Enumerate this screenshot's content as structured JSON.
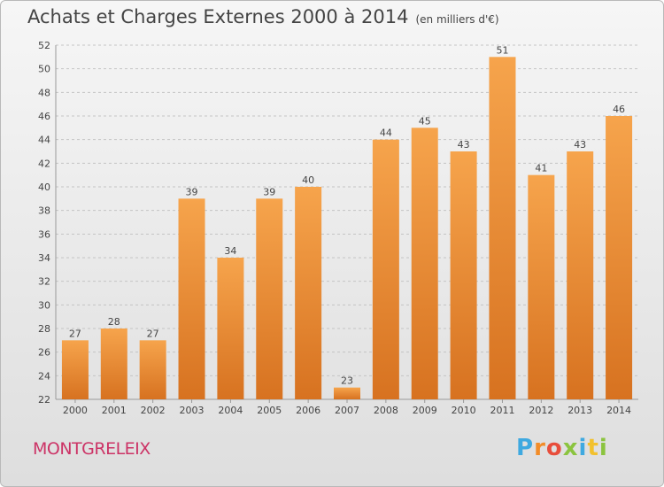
{
  "chart_data": {
    "type": "bar",
    "title": "Achats et Charges Externes 2000 à 2014",
    "subtitle": "(en milliers d'€)",
    "categories": [
      "2000",
      "2001",
      "2002",
      "2003",
      "2004",
      "2005",
      "2006",
      "2007",
      "2008",
      "2009",
      "2010",
      "2011",
      "2012",
      "2013",
      "2014"
    ],
    "values": [
      27,
      28,
      27,
      39,
      34,
      39,
      40,
      23,
      44,
      45,
      43,
      51,
      41,
      43,
      46
    ],
    "ylim": [
      22,
      52
    ],
    "yticks": [
      22,
      24,
      26,
      28,
      30,
      32,
      34,
      36,
      38,
      40,
      42,
      44,
      46,
      48,
      50,
      52
    ],
    "grid": true,
    "bar_color": "#f29a3f"
  },
  "footer": {
    "commune": "MONTGRELEIX",
    "logo_letters": [
      "P",
      "r",
      "o",
      "x",
      "i",
      "t",
      "i"
    ],
    "logo_colors": [
      "#3fa9e0",
      "#f28c28",
      "#e84e3c",
      "#8bc43f",
      "#3fa9e0",
      "#f2c12e",
      "#8bc43f"
    ]
  }
}
